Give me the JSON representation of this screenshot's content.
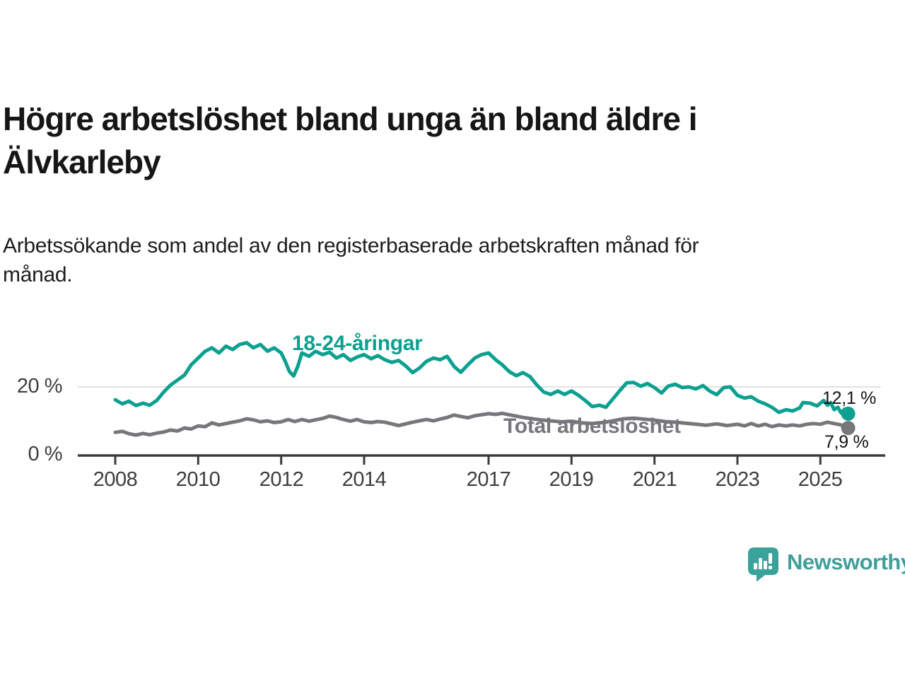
{
  "title": "Högre arbetslöshet bland unga än bland äldre i Älvkarleby",
  "subtitle": "Arbetssökande som andel av den registerbaserade arbetskraften månad för månad.",
  "branding": {
    "logo_text": "Newsworthy",
    "logo_color": "#3aa19b",
    "text_color": "#3f9f9b"
  },
  "chart_data": {
    "type": "line",
    "title": "Högre arbetslöshet bland unga än bland äldre i Älvkarleby",
    "subtitle": "Arbetssökande som andel av den registerbaserade arbetskraften månad för månad.",
    "xlabel": "",
    "ylabel": "",
    "x_range": [
      2008,
      2025.75
    ],
    "ylim": [
      0,
      40
    ],
    "grid": "single horizontal gridline at 20%",
    "x_ticks": [
      2008,
      2010,
      2012,
      2014,
      2017,
      2019,
      2021,
      2023,
      2025
    ],
    "y_ticks": [
      {
        "value": 0,
        "label": "0 %"
      },
      {
        "value": 20,
        "label": "20 %"
      }
    ],
    "gridline_value": 20,
    "axis_color": "#3b3b3b",
    "gridline_color": "#d8d8d8",
    "series": [
      {
        "name": "18-24-åringar",
        "color": "#0ba08f",
        "end_value_label": "12,1 %",
        "last_value": 12.1,
        "points": [
          [
            2008.0,
            16.2
          ],
          [
            2008.17,
            15.0
          ],
          [
            2008.33,
            15.8
          ],
          [
            2008.5,
            14.5
          ],
          [
            2008.67,
            15.2
          ],
          [
            2008.83,
            14.6
          ],
          [
            2009.0,
            16.0
          ],
          [
            2009.17,
            18.5
          ],
          [
            2009.33,
            20.5
          ],
          [
            2009.5,
            22.0
          ],
          [
            2009.67,
            23.5
          ],
          [
            2009.83,
            26.5
          ],
          [
            2010.0,
            28.5
          ],
          [
            2010.17,
            30.5
          ],
          [
            2010.33,
            31.5
          ],
          [
            2010.5,
            30.0
          ],
          [
            2010.67,
            32.0
          ],
          [
            2010.83,
            31.0
          ],
          [
            2011.0,
            32.5
          ],
          [
            2011.17,
            33.0
          ],
          [
            2011.33,
            31.5
          ],
          [
            2011.5,
            32.5
          ],
          [
            2011.67,
            30.5
          ],
          [
            2011.83,
            31.5
          ],
          [
            2012.0,
            30.0
          ],
          [
            2012.1,
            27.5
          ],
          [
            2012.2,
            24.5
          ],
          [
            2012.3,
            23.2
          ],
          [
            2012.4,
            26.0
          ],
          [
            2012.5,
            30.0
          ],
          [
            2012.67,
            29.0
          ],
          [
            2012.83,
            30.5
          ],
          [
            2013.0,
            29.5
          ],
          [
            2013.17,
            30.2
          ],
          [
            2013.33,
            28.5
          ],
          [
            2013.5,
            29.5
          ],
          [
            2013.67,
            27.8
          ],
          [
            2013.83,
            28.8
          ],
          [
            2014.0,
            29.5
          ],
          [
            2014.17,
            28.3
          ],
          [
            2014.33,
            29.2
          ],
          [
            2014.5,
            28.0
          ],
          [
            2014.67,
            27.2
          ],
          [
            2014.83,
            27.8
          ],
          [
            2015.0,
            26.2
          ],
          [
            2015.17,
            24.2
          ],
          [
            2015.33,
            25.5
          ],
          [
            2015.5,
            27.5
          ],
          [
            2015.67,
            28.5
          ],
          [
            2015.83,
            28.0
          ],
          [
            2016.0,
            29.0
          ],
          [
            2016.17,
            26.0
          ],
          [
            2016.33,
            24.3
          ],
          [
            2016.5,
            26.5
          ],
          [
            2016.67,
            28.5
          ],
          [
            2016.83,
            29.5
          ],
          [
            2017.0,
            30.0
          ],
          [
            2017.17,
            28.0
          ],
          [
            2017.33,
            26.5
          ],
          [
            2017.5,
            24.5
          ],
          [
            2017.67,
            23.3
          ],
          [
            2017.83,
            24.2
          ],
          [
            2018.0,
            23.0
          ],
          [
            2018.17,
            20.5
          ],
          [
            2018.33,
            18.5
          ],
          [
            2018.5,
            17.8
          ],
          [
            2018.67,
            18.8
          ],
          [
            2018.83,
            17.8
          ],
          [
            2019.0,
            18.8
          ],
          [
            2019.17,
            17.5
          ],
          [
            2019.33,
            16.0
          ],
          [
            2019.5,
            14.2
          ],
          [
            2019.67,
            14.6
          ],
          [
            2019.83,
            14.0
          ],
          [
            2020.0,
            16.5
          ],
          [
            2020.17,
            19.0
          ],
          [
            2020.33,
            21.2
          ],
          [
            2020.5,
            21.3
          ],
          [
            2020.67,
            20.2
          ],
          [
            2020.83,
            21.0
          ],
          [
            2021.0,
            19.8
          ],
          [
            2021.17,
            18.2
          ],
          [
            2021.33,
            20.2
          ],
          [
            2021.5,
            20.8
          ],
          [
            2021.67,
            19.8
          ],
          [
            2021.83,
            20.0
          ],
          [
            2022.0,
            19.4
          ],
          [
            2022.17,
            20.4
          ],
          [
            2022.33,
            18.8
          ],
          [
            2022.5,
            17.7
          ],
          [
            2022.67,
            19.8
          ],
          [
            2022.83,
            20.0
          ],
          [
            2023.0,
            17.5
          ],
          [
            2023.17,
            16.7
          ],
          [
            2023.33,
            17.1
          ],
          [
            2023.5,
            15.8
          ],
          [
            2023.67,
            15.0
          ],
          [
            2023.83,
            14.0
          ],
          [
            2024.0,
            12.5
          ],
          [
            2024.17,
            13.3
          ],
          [
            2024.33,
            12.9
          ],
          [
            2024.5,
            13.8
          ],
          [
            2024.58,
            15.4
          ],
          [
            2024.75,
            15.2
          ],
          [
            2024.92,
            14.4
          ],
          [
            2025.08,
            16.0
          ],
          [
            2025.17,
            14.6
          ],
          [
            2025.25,
            15.4
          ],
          [
            2025.33,
            13.3
          ],
          [
            2025.42,
            14.0
          ],
          [
            2025.5,
            12.3
          ],
          [
            2025.58,
            13.4
          ],
          [
            2025.67,
            12.1
          ]
        ]
      },
      {
        "name": "Total arbetslöshet",
        "color": "#77767b",
        "end_value_label": "7,9 %",
        "last_value": 7.9,
        "points": [
          [
            2008.0,
            6.6
          ],
          [
            2008.17,
            6.9
          ],
          [
            2008.33,
            6.2
          ],
          [
            2008.5,
            5.8
          ],
          [
            2008.67,
            6.3
          ],
          [
            2008.83,
            5.9
          ],
          [
            2009.0,
            6.4
          ],
          [
            2009.17,
            6.7
          ],
          [
            2009.33,
            7.3
          ],
          [
            2009.5,
            7.0
          ],
          [
            2009.67,
            7.9
          ],
          [
            2009.83,
            7.6
          ],
          [
            2010.0,
            8.5
          ],
          [
            2010.17,
            8.3
          ],
          [
            2010.33,
            9.4
          ],
          [
            2010.5,
            8.8
          ],
          [
            2010.67,
            9.2
          ],
          [
            2010.83,
            9.6
          ],
          [
            2011.0,
            10.0
          ],
          [
            2011.17,
            10.6
          ],
          [
            2011.33,
            10.3
          ],
          [
            2011.5,
            9.7
          ],
          [
            2011.67,
            10.0
          ],
          [
            2011.83,
            9.5
          ],
          [
            2012.0,
            9.7
          ],
          [
            2012.17,
            10.4
          ],
          [
            2012.33,
            9.8
          ],
          [
            2012.5,
            10.4
          ],
          [
            2012.67,
            9.9
          ],
          [
            2012.83,
            10.3
          ],
          [
            2013.0,
            10.7
          ],
          [
            2013.17,
            11.4
          ],
          [
            2013.33,
            11.0
          ],
          [
            2013.5,
            10.4
          ],
          [
            2013.67,
            9.9
          ],
          [
            2013.83,
            10.4
          ],
          [
            2014.0,
            9.7
          ],
          [
            2014.17,
            9.5
          ],
          [
            2014.33,
            9.8
          ],
          [
            2014.5,
            9.6
          ],
          [
            2014.67,
            9.1
          ],
          [
            2014.83,
            8.6
          ],
          [
            2015.0,
            9.1
          ],
          [
            2015.17,
            9.6
          ],
          [
            2015.33,
            10.0
          ],
          [
            2015.5,
            10.4
          ],
          [
            2015.67,
            10.0
          ],
          [
            2015.83,
            10.5
          ],
          [
            2016.0,
            11.0
          ],
          [
            2016.17,
            11.7
          ],
          [
            2016.33,
            11.3
          ],
          [
            2016.5,
            10.9
          ],
          [
            2016.67,
            11.5
          ],
          [
            2016.83,
            11.8
          ],
          [
            2017.0,
            12.1
          ],
          [
            2017.17,
            11.9
          ],
          [
            2017.33,
            12.2
          ],
          [
            2017.5,
            11.8
          ],
          [
            2017.67,
            11.4
          ],
          [
            2017.83,
            11.0
          ],
          [
            2018.0,
            10.7
          ],
          [
            2018.25,
            10.3
          ],
          [
            2018.5,
            10.0
          ],
          [
            2018.75,
            9.7
          ],
          [
            2019.0,
            9.9
          ],
          [
            2019.25,
            9.4
          ],
          [
            2019.5,
            9.2
          ],
          [
            2019.75,
            9.5
          ],
          [
            2020.0,
            10.0
          ],
          [
            2020.25,
            10.6
          ],
          [
            2020.5,
            10.8
          ],
          [
            2020.75,
            10.5
          ],
          [
            2021.0,
            10.2
          ],
          [
            2021.25,
            9.8
          ],
          [
            2021.5,
            9.6
          ],
          [
            2021.75,
            9.3
          ],
          [
            2022.0,
            9.0
          ],
          [
            2022.25,
            8.7
          ],
          [
            2022.5,
            9.1
          ],
          [
            2022.75,
            8.6
          ],
          [
            2023.0,
            9.0
          ],
          [
            2023.17,
            8.5
          ],
          [
            2023.33,
            9.2
          ],
          [
            2023.5,
            8.5
          ],
          [
            2023.67,
            9.0
          ],
          [
            2023.83,
            8.3
          ],
          [
            2024.0,
            8.8
          ],
          [
            2024.17,
            8.5
          ],
          [
            2024.33,
            8.8
          ],
          [
            2024.5,
            8.5
          ],
          [
            2024.67,
            9.0
          ],
          [
            2024.83,
            9.2
          ],
          [
            2025.0,
            9.0
          ],
          [
            2025.17,
            9.6
          ],
          [
            2025.33,
            9.2
          ],
          [
            2025.5,
            8.8
          ],
          [
            2025.58,
            8.3
          ],
          [
            2025.67,
            7.9
          ]
        ]
      }
    ]
  }
}
